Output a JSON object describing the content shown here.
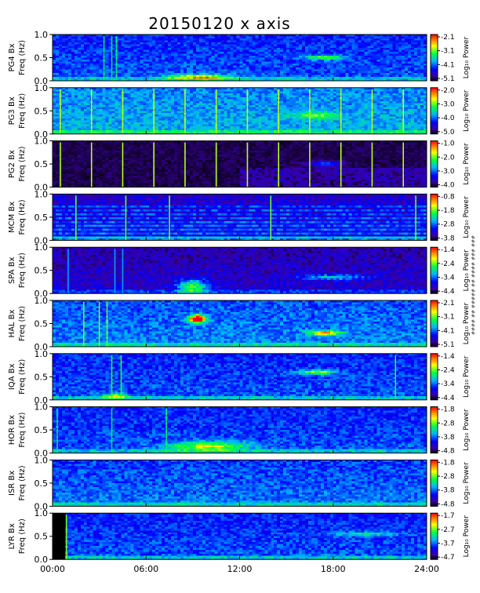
{
  "chart_data": {
    "type": "heatmap",
    "title": "20150120 x axis",
    "side_note": "### ### #### ## ##### ## ####",
    "x_axis": {
      "tick_labels": [
        "00:00",
        "06:00",
        "12:00",
        "18:00",
        "24:00"
      ],
      "tick_hours": [
        0,
        6,
        12,
        18,
        24
      ],
      "range_hours": [
        0,
        24
      ]
    },
    "y_axis": {
      "label": "Freq (Hz)",
      "tick_labels": [
        "0.0",
        "0.5",
        "1.0"
      ],
      "range": [
        0,
        1.0
      ]
    },
    "colorbar_label": "Log₁₀ Power",
    "panels": [
      {
        "station": "PG4 Bx",
        "colorbar_ticks": [
          "-2.1",
          "-3.1",
          "-4.1",
          "-5.1"
        ],
        "base": 0.3,
        "vlines": [
          3.3,
          3.8,
          4.1
        ],
        "vline_strength": 0.25,
        "blobs": [
          {
            "t": 9.5,
            "f": 0.08,
            "dt": 2.0,
            "df": 0.05,
            "amp": 0.5
          },
          {
            "t": 17.5,
            "f": 0.5,
            "dt": 1.2,
            "df": 0.05,
            "amp": 0.35
          }
        ]
      },
      {
        "station": "PG3 Bx",
        "colorbar_ticks": [
          "-2.0",
          "-3.0",
          "-4.0",
          "-5.0"
        ],
        "base": 0.4,
        "vlines": [
          0.5,
          2.5,
          4.5,
          6.5,
          8.5,
          10.5,
          12.5,
          14.5,
          16.5,
          18.5,
          20.5,
          22.5
        ],
        "vline_strength": 0.3,
        "blobs": [
          {
            "t": 17.0,
            "f": 0.4,
            "dt": 1.5,
            "df": 0.08,
            "amp": 0.25
          }
        ]
      },
      {
        "station": "PG2 Bx",
        "colorbar_ticks": [
          "-1.0",
          "-2.0",
          "-3.0",
          "-4.0"
        ],
        "base": 0.0,
        "dark": true,
        "vlines": [
          0.5,
          2.5,
          4.5,
          6.5,
          8.5,
          10.5,
          12.5,
          14.5,
          16.5,
          18.5,
          20.5,
          22.5
        ],
        "vline_strength": 0.6,
        "blobs": [
          {
            "t": 17.5,
            "f": 0.5,
            "dt": 1.0,
            "df": 0.05,
            "amp": 0.3
          }
        ]
      },
      {
        "station": "MCM Bx",
        "colorbar_ticks": [
          "-0.8",
          "-1.8",
          "-2.8",
          "-3.8"
        ],
        "base": 0.2,
        "hlines": true,
        "vlines": [
          1.5,
          4.7,
          7.5,
          14.0,
          23.3
        ],
        "vline_strength": 0.45,
        "blobs": []
      },
      {
        "station": "SPA Bx",
        "colorbar_ticks": [
          "-1.4",
          "-2.4",
          "-3.4",
          "-4.4"
        ],
        "base": 0.15,
        "vlines": [
          1.0,
          4.0,
          4.5
        ],
        "vline_strength": 0.25,
        "blobs": [
          {
            "t": 9.0,
            "f": 0.15,
            "dt": 1.0,
            "df": 0.15,
            "amp": 0.45
          },
          {
            "t": 18.0,
            "f": 0.35,
            "dt": 2.0,
            "df": 0.06,
            "amp": 0.3
          }
        ]
      },
      {
        "station": "HAL Bx",
        "colorbar_ticks": [
          "-2.1",
          "-3.1",
          "-4.1",
          "-5.1"
        ],
        "base": 0.35,
        "vlines": [
          2.0,
          3.0,
          3.5
        ],
        "vline_strength": 0.3,
        "blobs": [
          {
            "t": 9.3,
            "f": 0.6,
            "dt": 0.5,
            "df": 0.08,
            "amp": 0.9
          },
          {
            "t": 17.5,
            "f": 0.3,
            "dt": 1.0,
            "df": 0.05,
            "amp": 0.5
          }
        ]
      },
      {
        "station": "IQA Bx",
        "colorbar_ticks": [
          "-1.4",
          "-2.4",
          "-3.4",
          "-4.4"
        ],
        "base": 0.3,
        "vlines": [
          3.8,
          4.4,
          22.0
        ],
        "vline_strength": 0.3,
        "blobs": [
          {
            "t": 17.0,
            "f": 0.6,
            "dt": 1.2,
            "df": 0.05,
            "amp": 0.4
          },
          {
            "t": 4.0,
            "f": 0.08,
            "dt": 0.8,
            "df": 0.05,
            "amp": 0.4
          }
        ]
      },
      {
        "station": "HOR Bx",
        "colorbar_ticks": [
          "-1.8",
          "-2.8",
          "-3.8",
          "-4.8"
        ],
        "base": 0.3,
        "vlines": [
          0.3,
          3.8,
          7.3
        ],
        "vline_strength": 0.25,
        "blobs": [
          {
            "t": 10.0,
            "f": 0.15,
            "dt": 2.5,
            "df": 0.1,
            "amp": 0.4
          }
        ]
      },
      {
        "station": "ISR Bx",
        "colorbar_ticks": [
          "-1.8",
          "-2.8",
          "-3.8",
          "-4.8"
        ],
        "base": 0.33,
        "vlines": [],
        "vline_strength": 0.2,
        "blobs": []
      },
      {
        "station": "LYR Bx",
        "colorbar_ticks": [
          "-1.7",
          "-2.7",
          "-3.7",
          "-4.7"
        ],
        "base": 0.3,
        "gap": [
          0.0,
          0.85
        ],
        "vlines": [
          0.9
        ],
        "vline_strength": 0.35,
        "blobs": [
          {
            "t": 20.0,
            "f": 0.55,
            "dt": 2.0,
            "df": 0.05,
            "amp": 0.25
          }
        ]
      }
    ]
  }
}
